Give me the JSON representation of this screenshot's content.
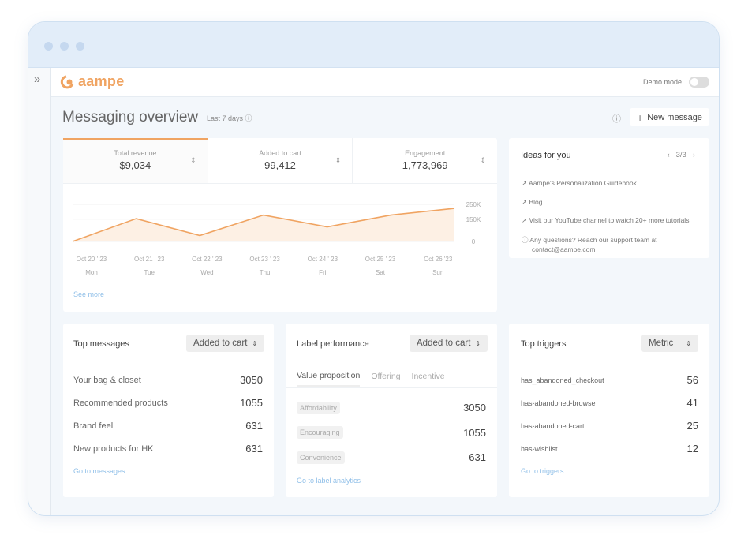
{
  "app": {
    "logo": "aampe",
    "demo_mode_label": "Demo mode",
    "demo_mode_on": false
  },
  "header": {
    "title": "Messaging overview",
    "range": "Last 7 days",
    "new_message": "New message"
  },
  "kpis": [
    {
      "label": "Total revenue",
      "value": "$9,034",
      "active": true
    },
    {
      "label": "Added to cart",
      "value": "99,412"
    },
    {
      "label": "Engagement",
      "value": "1,773,969"
    }
  ],
  "chart_data": {
    "type": "area",
    "categories": [
      "Oct 20 ' 23",
      "Oct 21 ' 23",
      "Oct 22 ' 23",
      "Oct 23 ' 23",
      "Oct 24 ' 23",
      "Oct 25 ' 23",
      "Oct 26 '23"
    ],
    "days": [
      "Mon",
      "Tue",
      "Wed",
      "Thu",
      "Fri",
      "Sat",
      "Sun"
    ],
    "values": [
      0,
      154000,
      40000,
      178000,
      98000,
      178000,
      223000
    ],
    "yticks": [
      "250K",
      "150K",
      "0"
    ],
    "ylim": [
      0,
      250000
    ],
    "color": "#f0a462"
  },
  "see_more": "See more",
  "ideas": {
    "title": "Ideas for you",
    "pager": "3/3",
    "items": [
      "Aampe's Personalization Guidebook",
      "Blog",
      "Visit our YouTube channel to watch 20+ more tutorials"
    ],
    "question": "Any questions? Reach our support team at",
    "email": "contact@aampe.com"
  },
  "top_messages": {
    "title": "Top messages",
    "metric": "Added to cart",
    "rows": [
      {
        "name": "Your bag & closet",
        "value": "3050"
      },
      {
        "name": "Recommended products",
        "value": "1055"
      },
      {
        "name": "Brand feel",
        "value": "631"
      },
      {
        "name": "New products for HK",
        "value": "631"
      }
    ],
    "link": "Go to messages"
  },
  "label_perf": {
    "title": "Label performance",
    "metric": "Added to cart",
    "tabs": [
      "Value proposition",
      "Offering",
      "Incentive"
    ],
    "rows": [
      {
        "name": "Affordability",
        "value": "3050"
      },
      {
        "name": "Encouraging",
        "value": "1055"
      },
      {
        "name": "Convenience",
        "value": "631"
      }
    ],
    "link": "Go to label analytics"
  },
  "top_triggers": {
    "title": "Top triggers",
    "metric": "Metric",
    "rows": [
      {
        "name": "has_abandoned_checkout",
        "value": "56"
      },
      {
        "name": "has-abandoned-browse",
        "value": "41"
      },
      {
        "name": "has-abandoned-cart",
        "value": "25"
      },
      {
        "name": "has-wishlist",
        "value": "12"
      }
    ],
    "link": "Go to triggers"
  }
}
